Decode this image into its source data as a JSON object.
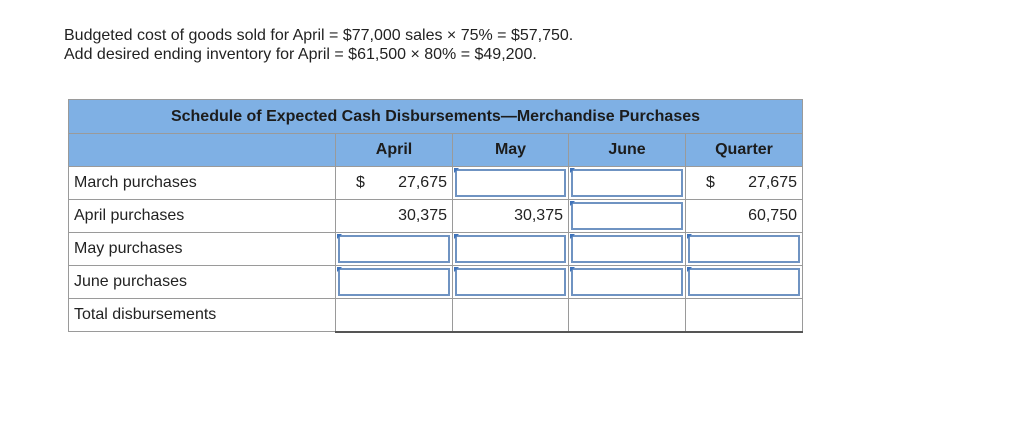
{
  "intro": {
    "line1": "Budgeted cost of goods sold for April = $77,000 sales × 75% = $57,750.",
    "line2": "Add desired ending inventory for April = $61,500 × 80% = $49,200."
  },
  "schedule": {
    "title": "Schedule of Expected Cash Disbursements—Merchandise Purchases",
    "columns": [
      "April",
      "May",
      "June",
      "Quarter"
    ],
    "rows": [
      {
        "label": "March purchases",
        "april": "27,675",
        "april_dollar": "$",
        "may": "",
        "june": "",
        "quarter": "27,675",
        "quarter_dollar": "$"
      },
      {
        "label": "April purchases",
        "april": "30,375",
        "may": "30,375",
        "june": "",
        "quarter": "60,750"
      },
      {
        "label": "May purchases",
        "april": "",
        "may": "",
        "june": "",
        "quarter": ""
      },
      {
        "label": "June purchases",
        "april": "",
        "may": "",
        "june": "",
        "quarter": ""
      },
      {
        "label": "Total disbursements",
        "april": "",
        "may": "",
        "june": "",
        "quarter": ""
      }
    ]
  }
}
